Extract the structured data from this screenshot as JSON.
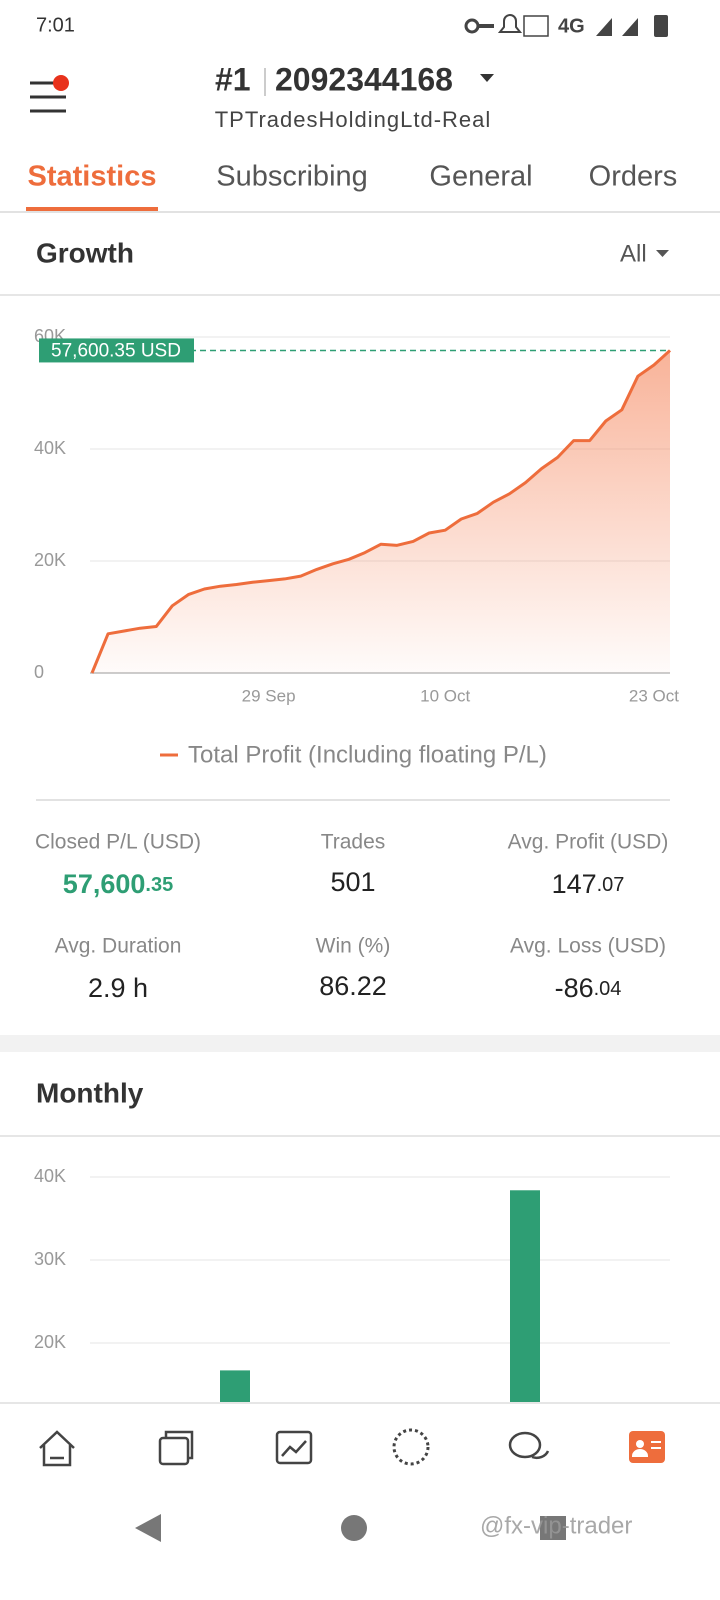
{
  "status_bar": {
    "time": "7:01",
    "network": "4G"
  },
  "header": {
    "account_number": "#1",
    "account_id": "2092344168",
    "server": "TPTradesHoldingLtd-Real"
  },
  "tabs": [
    "Statistics",
    "Subscribing",
    "General",
    "Orders"
  ],
  "growth": {
    "title": "Growth",
    "filter": "All",
    "chart_data": {
      "type": "area",
      "categories": [
        null,
        null,
        null,
        null,
        null,
        null,
        null,
        null,
        null,
        null,
        null,
        "29 Sep",
        null,
        null,
        null,
        null,
        null,
        null,
        null,
        null,
        null,
        null,
        "10 Oct",
        null,
        null,
        null,
        null,
        null,
        null,
        null,
        null,
        null,
        null,
        null,
        null,
        "23 Oct",
        null
      ],
      "series": [
        {
          "name": "Total Profit (Including floating P/L)",
          "color": "#ee6d3c",
          "values": [
            0,
            7000,
            7500,
            8000,
            8300,
            12000,
            14000,
            15000,
            15500,
            15800,
            16200,
            16500,
            16800,
            17300,
            18500,
            19500,
            20300,
            21500,
            23000,
            22800,
            23500,
            25000,
            25500,
            27500,
            28500,
            30500,
            32000,
            34000,
            36500,
            38500,
            41500,
            41500,
            45000,
            47000,
            53000,
            55000,
            57600.35
          ],
          "value_labels": [
            null,
            null,
            null,
            null,
            null,
            null,
            null,
            null,
            null,
            null,
            null,
            null,
            null,
            null,
            null,
            null,
            null,
            null,
            null,
            null,
            null,
            null,
            null,
            null,
            null,
            null,
            null,
            null,
            null,
            null,
            null,
            null,
            null,
            null,
            null,
            null,
            "57,600.35 USD"
          ]
        }
      ],
      "ylim": [
        0,
        60000
      ],
      "yticks": [
        0,
        {
          "value": 20000,
          "label": "20K"
        },
        {
          "value": 40000,
          "label": "40K"
        },
        {
          "value": 60000,
          "label": "60K"
        }
      ],
      "grid": true
    }
  },
  "stats": [
    {
      "label": "Closed P/L (USD)",
      "value": "57,600",
      "decimals": ".35"
    },
    {
      "label": "Trades",
      "value": "501"
    },
    {
      "label": "Avg. Profit (USD)",
      "value": "147",
      "decimals": ".07"
    },
    {
      "label": "Avg. Duration",
      "value": "2.9 h"
    },
    {
      "label": "Win (%)",
      "value": "86.22"
    },
    {
      "label": "Avg. Loss (USD)",
      "value": "-86",
      "decimals": ".04"
    }
  ],
  "monthly": {
    "title": "Monthly",
    "chart_data": {
      "type": "bar",
      "categories": [
        null,
        null
      ],
      "values": [
        16700,
        38400
      ],
      "color": "#2e9e74",
      "ylim": [
        0,
        40000
      ],
      "yticks": [
        {
          "value": 20000,
          "label": "20K"
        },
        {
          "value": 30000,
          "label": "30K"
        },
        {
          "value": 40000,
          "label": "40K"
        }
      ],
      "grid": true
    }
  },
  "watermark": "@fx-vip-trader"
}
